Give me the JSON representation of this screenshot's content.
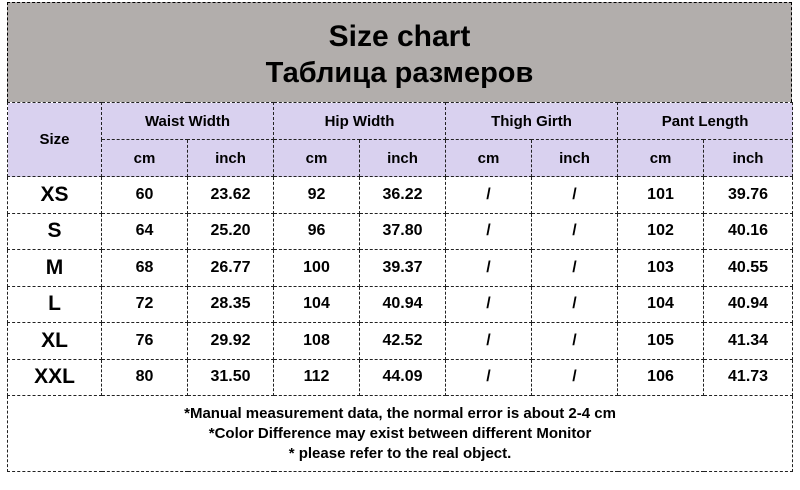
{
  "title": {
    "en": "Size chart",
    "ru": "Таблица размеров"
  },
  "header": {
    "size": "Size",
    "groups": [
      "Waist Width",
      "Hip Width",
      "Thigh Girth",
      "Pant Length"
    ],
    "units": [
      "cm",
      "inch",
      "cm",
      "inch",
      "cm",
      "inch",
      "cm",
      "inch"
    ]
  },
  "rows": [
    {
      "size": "XS",
      "values": [
        "60",
        "23.62",
        "92",
        "36.22",
        "/",
        "/",
        "101",
        "39.76"
      ]
    },
    {
      "size": "S",
      "values": [
        "64",
        "25.20",
        "96",
        "37.80",
        "/",
        "/",
        "102",
        "40.16"
      ]
    },
    {
      "size": "M",
      "values": [
        "68",
        "26.77",
        "100",
        "39.37",
        "/",
        "/",
        "103",
        "40.55"
      ]
    },
    {
      "size": "L",
      "values": [
        "72",
        "28.35",
        "104",
        "40.94",
        "/",
        "/",
        "104",
        "40.94"
      ]
    },
    {
      "size": "XL",
      "values": [
        "76",
        "29.92",
        "108",
        "42.52",
        "/",
        "/",
        "105",
        "41.34"
      ]
    },
    {
      "size": "XXL",
      "values": [
        "80",
        "31.50",
        "112",
        "44.09",
        "/",
        "/",
        "106",
        "41.73"
      ]
    }
  ],
  "notes": [
    "*Manual measurement data, the normal error is about 2-4 cm",
    "*Color Difference may exist between different Monitor",
    "* please refer to the real object."
  ],
  "colors": {
    "title_bg": "#b2aeac",
    "header_bg": "#d9d1ef"
  }
}
